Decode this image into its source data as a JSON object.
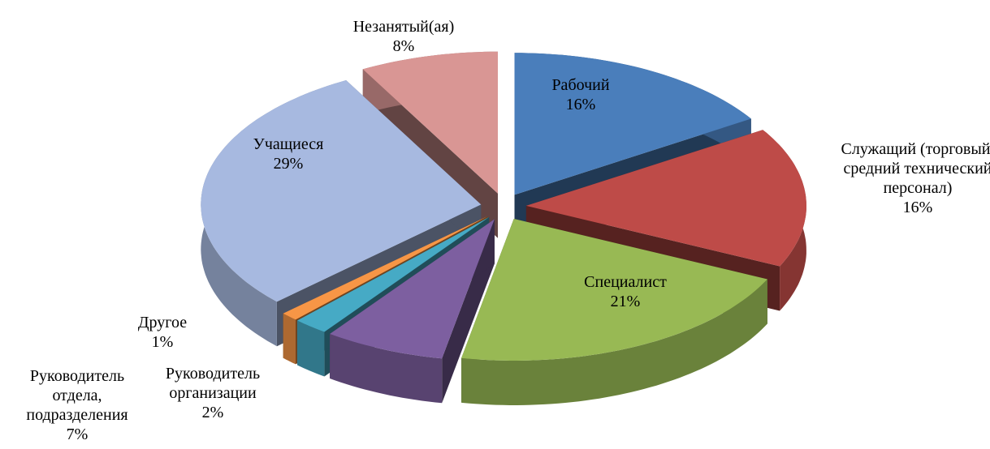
{
  "chart_data": {
    "type": "pie3d",
    "categories": [
      "Рабочий",
      "Служащий (торговый, средний технический персонал)",
      "Специалист",
      "Руководитель отдела, подразделения",
      "Руководитель организации",
      "Другое",
      "Учащиеся",
      "Незанятый(ая)"
    ],
    "values": [
      16,
      16,
      21,
      7,
      2,
      1,
      29,
      8
    ],
    "value_labels": [
      "16%",
      "16%",
      "21%",
      "7%",
      "2%",
      "1%",
      "29%",
      "8%"
    ],
    "colors": [
      "#4a7ebb",
      "#be4b48",
      "#98b954",
      "#7d5fa0",
      "#46aac5",
      "#f79646",
      "#a7b9e0",
      "#d99694"
    ]
  }
}
